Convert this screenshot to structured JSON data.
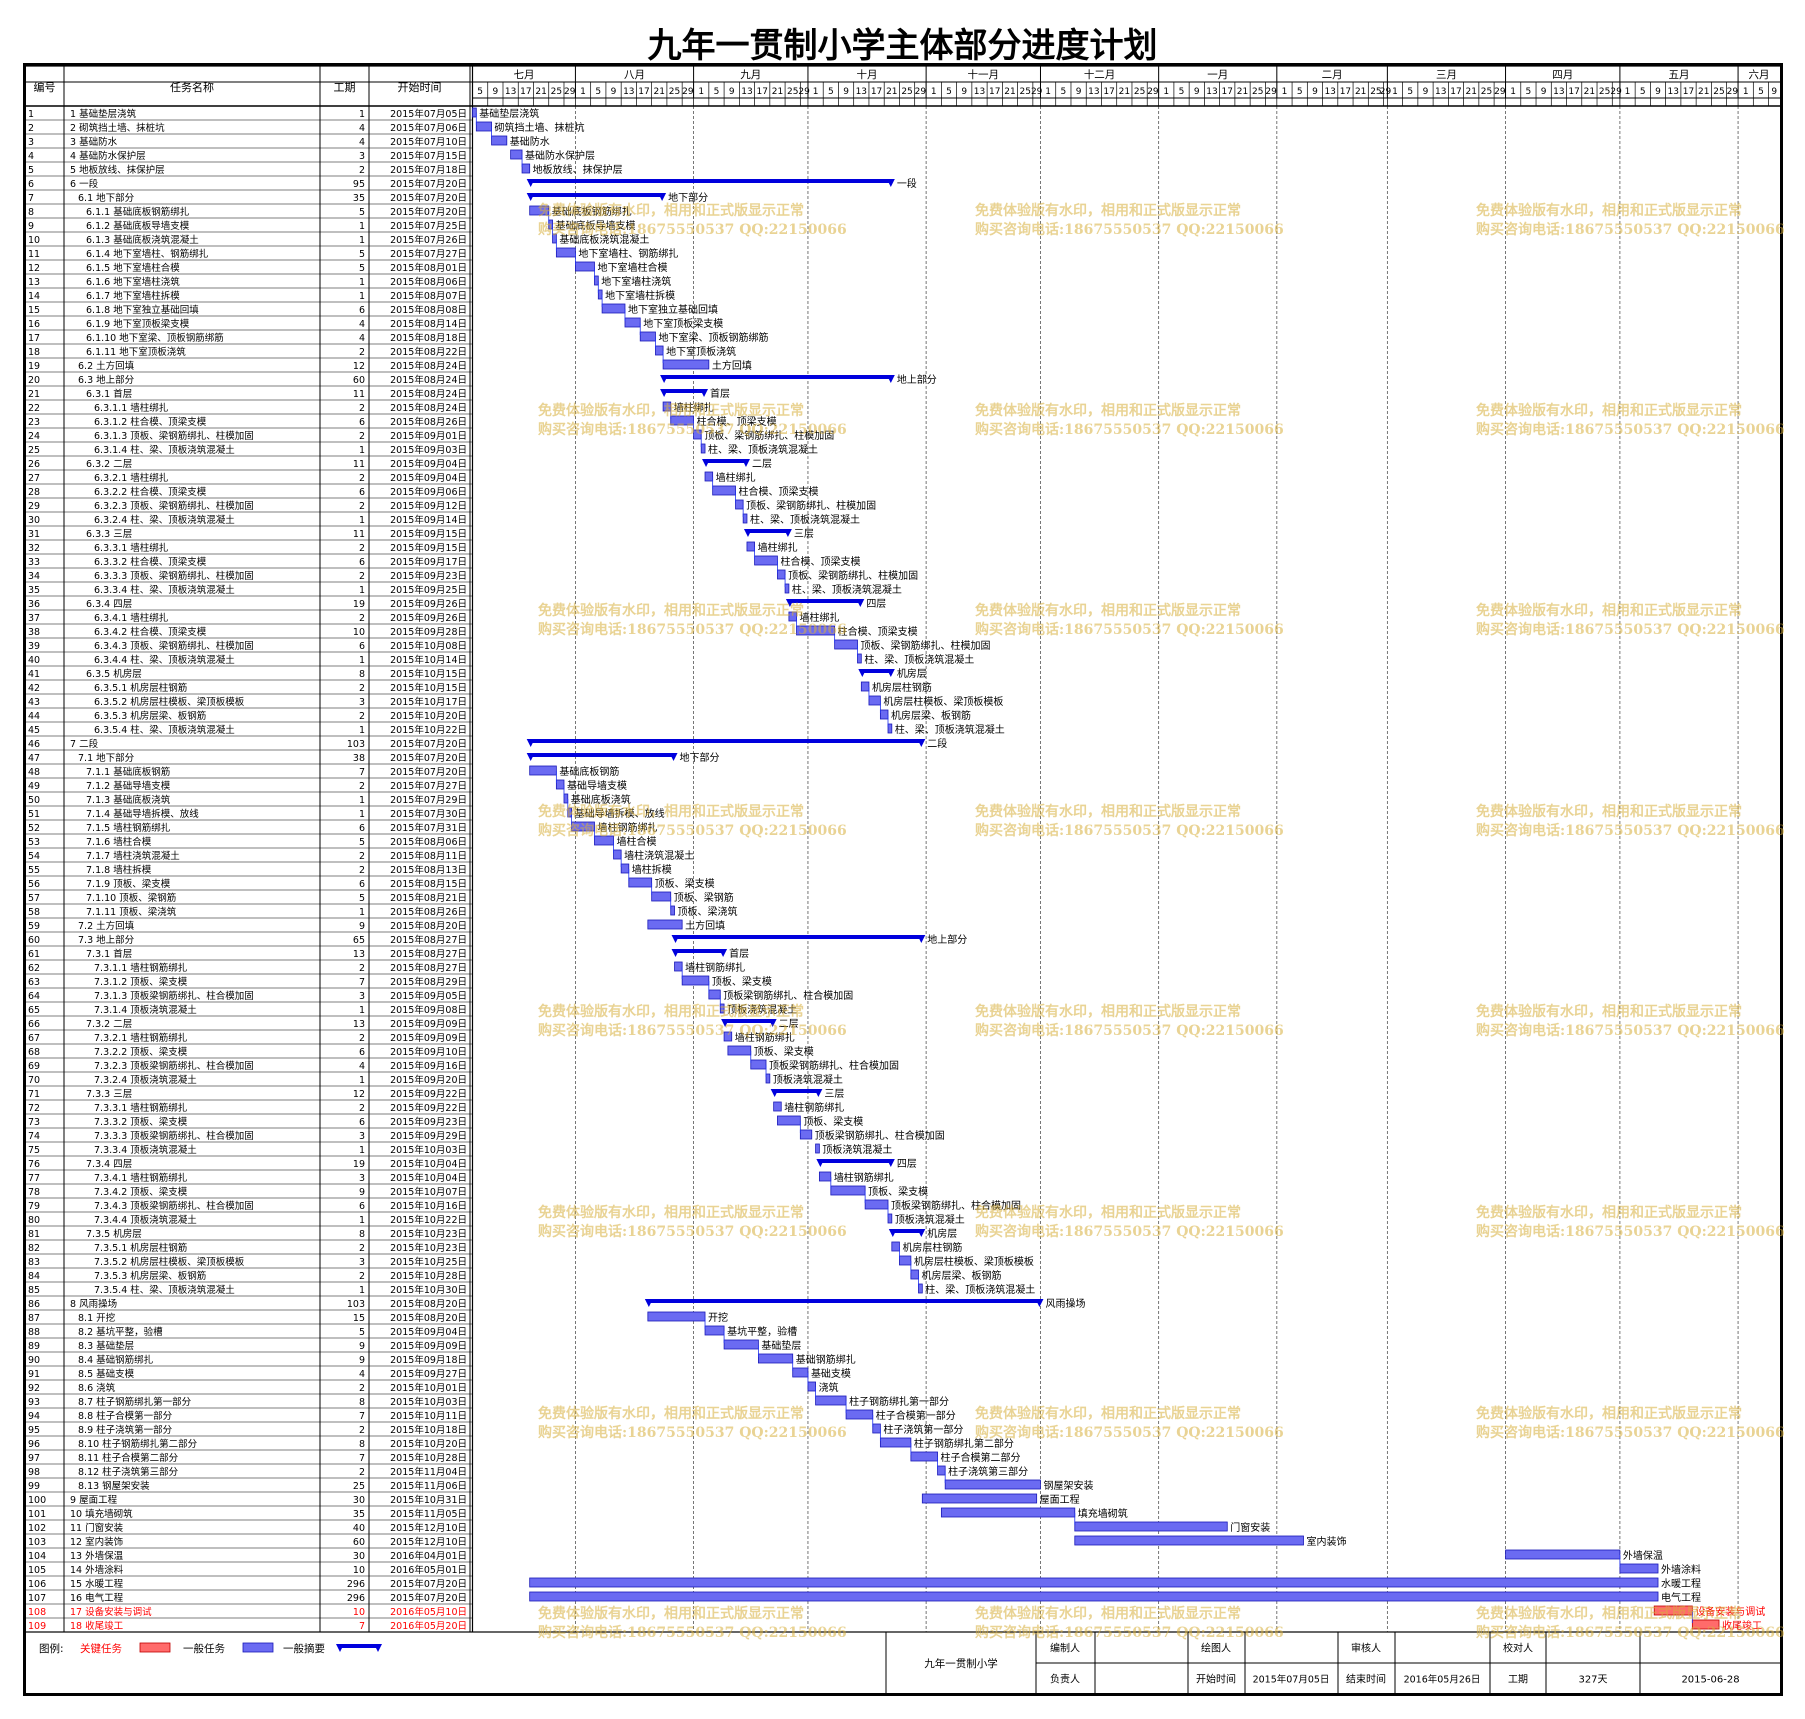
{
  "title": "九年一贯制小学主体部分进度计划",
  "table_headers": [
    "编号",
    "任务名称",
    "工期",
    "开始时间"
  ],
  "months": [
    "七月",
    "八月",
    "九月",
    "十月",
    "十一月",
    "十二月",
    "一月",
    "二月",
    "三月",
    "四月",
    "五月",
    "六月"
  ],
  "watermark": {
    "line1": "免费体验版有水印，相用和正式版显示正常",
    "line2": "购买咨询电话:18675550537 QQ:22150066"
  },
  "legend": {
    "label": "图例:",
    "critical": "关键任务",
    "normal": "一般任务",
    "summary": "一般摘要"
  },
  "footer": {
    "project": "九年一贯制小学",
    "compiler_label": "编制人",
    "drawer_label": "绘图人",
    "reviewer_label": "审核人",
    "checker_label": "校对人",
    "owner_label": "负责人",
    "start_label": "开始时间",
    "start_value": "2015年07月05日",
    "end_label": "结束时间",
    "end_value": "2016年05月26日",
    "duration_label": "工期",
    "duration_value": "327天",
    "date": "2015-06-28"
  },
  "colors": {
    "bar": "#6b6bf2",
    "bar_border": "#1a1ab8",
    "summary": "#0000dd",
    "critical": "#ff6b6b",
    "critical_text": "#ff0000",
    "link": "#2233ee"
  },
  "chart_data": {
    "type": "gantt",
    "timeline_start": "2015-07-05",
    "timeline_end": "2016-06-12",
    "tasks": [
      {
        "id": "1",
        "name": "1 基础垫层浇筑",
        "dur": 1,
        "start": "2015年07月05日",
        "kind": "task",
        "indent": 1
      },
      {
        "id": "2",
        "name": "2 砌筑挡土墙、抹桩坑",
        "dur": 4,
        "start": "2015年07月06日",
        "kind": "task",
        "indent": 1
      },
      {
        "id": "3",
        "name": "3 基础防水",
        "dur": 4,
        "start": "2015年07月10日",
        "kind": "task",
        "indent": 1
      },
      {
        "id": "4",
        "name": "4 基础防水保护层",
        "dur": 3,
        "start": "2015年07月15日",
        "kind": "task",
        "indent": 1
      },
      {
        "id": "5",
        "name": "5 地板放线、抹保护层",
        "dur": 2,
        "start": "2015年07月18日",
        "kind": "task",
        "indent": 1
      },
      {
        "id": "6",
        "name": "6 一段",
        "dur": 95,
        "start": "2015年07月20日",
        "kind": "summary",
        "indent": 1
      },
      {
        "id": "7",
        "name": "6.1 地下部分",
        "dur": 35,
        "start": "2015年07月20日",
        "kind": "summary",
        "indent": 2
      },
      {
        "id": "8",
        "name": "6.1.1 基础底板钢筋绑扎",
        "dur": 5,
        "start": "2015年07月20日",
        "kind": "task",
        "indent": 3
      },
      {
        "id": "9",
        "name": "6.1.2 基础底板导墙支模",
        "dur": 1,
        "start": "2015年07月25日",
        "kind": "task",
        "indent": 3
      },
      {
        "id": "10",
        "name": "6.1.3 基础底板浇筑混凝土",
        "dur": 1,
        "start": "2015年07月26日",
        "kind": "task",
        "indent": 3
      },
      {
        "id": "11",
        "name": "6.1.4 地下室墙柱、钢筋绑扎",
        "dur": 5,
        "start": "2015年07月27日",
        "kind": "task",
        "indent": 3
      },
      {
        "id": "12",
        "name": "6.1.5 地下室墙柱合模",
        "dur": 5,
        "start": "2015年08月01日",
        "kind": "task",
        "indent": 3
      },
      {
        "id": "13",
        "name": "6.1.6 地下室墙柱浇筑",
        "dur": 1,
        "start": "2015年08月06日",
        "kind": "task",
        "indent": 3
      },
      {
        "id": "14",
        "name": "6.1.7 地下室墙柱拆模",
        "dur": 1,
        "start": "2015年08月07日",
        "kind": "task",
        "indent": 3
      },
      {
        "id": "15",
        "name": "6.1.8 地下室独立基础回填",
        "dur": 6,
        "start": "2015年08月08日",
        "kind": "task",
        "indent": 3
      },
      {
        "id": "16",
        "name": "6.1.9 地下室顶板梁支模",
        "dur": 4,
        "start": "2015年08月14日",
        "kind": "task",
        "indent": 3
      },
      {
        "id": "17",
        "name": "6.1.10 地下室梁、顶板钢筋绑筋",
        "dur": 4,
        "start": "2015年08月18日",
        "kind": "task",
        "indent": 3
      },
      {
        "id": "18",
        "name": "6.1.11 地下室顶板浇筑",
        "dur": 2,
        "start": "2015年08月22日",
        "kind": "task",
        "indent": 3
      },
      {
        "id": "19",
        "name": "6.2 土方回填",
        "dur": 12,
        "start": "2015年08月24日",
        "kind": "task",
        "indent": 2
      },
      {
        "id": "20",
        "name": "6.3 地上部分",
        "dur": 60,
        "start": "2015年08月24日",
        "kind": "summary",
        "indent": 2
      },
      {
        "id": "21",
        "name": "6.3.1 首层",
        "dur": 11,
        "start": "2015年08月24日",
        "kind": "summary",
        "indent": 3
      },
      {
        "id": "22",
        "name": "6.3.1.1 墙柱绑扎",
        "dur": 2,
        "start": "2015年08月24日",
        "kind": "task",
        "indent": 4
      },
      {
        "id": "23",
        "name": "6.3.1.2 柱合模、顶梁支模",
        "dur": 6,
        "start": "2015年08月26日",
        "kind": "task",
        "indent": 4
      },
      {
        "id": "24",
        "name": "6.3.1.3 顶板、梁钢筋绑扎、柱模加固",
        "dur": 2,
        "start": "2015年09月01日",
        "kind": "task",
        "indent": 4
      },
      {
        "id": "25",
        "name": "6.3.1.4 柱、梁、顶板浇筑混凝土",
        "dur": 1,
        "start": "2015年09月03日",
        "kind": "task",
        "indent": 4
      },
      {
        "id": "26",
        "name": "6.3.2 二层",
        "dur": 11,
        "start": "2015年09月04日",
        "kind": "summary",
        "indent": 3
      },
      {
        "id": "27",
        "name": "6.3.2.1 墙柱绑扎",
        "dur": 2,
        "start": "2015年09月04日",
        "kind": "task",
        "indent": 4
      },
      {
        "id": "28",
        "name": "6.3.2.2 柱合模、顶梁支模",
        "dur": 6,
        "start": "2015年09月06日",
        "kind": "task",
        "indent": 4
      },
      {
        "id": "29",
        "name": "6.3.2.3 顶板、梁钢筋绑扎、柱模加固",
        "dur": 2,
        "start": "2015年09月12日",
        "kind": "task",
        "indent": 4
      },
      {
        "id": "30",
        "name": "6.3.2.4 柱、梁、顶板浇筑混凝土",
        "dur": 1,
        "start": "2015年09月14日",
        "kind": "task",
        "indent": 4
      },
      {
        "id": "31",
        "name": "6.3.3 三层",
        "dur": 11,
        "start": "2015年09月15日",
        "kind": "summary",
        "indent": 3
      },
      {
        "id": "32",
        "name": "6.3.3.1 墙柱绑扎",
        "dur": 2,
        "start": "2015年09月15日",
        "kind": "task",
        "indent": 4
      },
      {
        "id": "33",
        "name": "6.3.3.2 柱合模、顶梁支模",
        "dur": 6,
        "start": "2015年09月17日",
        "kind": "task",
        "indent": 4
      },
      {
        "id": "34",
        "name": "6.3.3.3 顶板、梁钢筋绑扎、柱模加固",
        "dur": 2,
        "start": "2015年09月23日",
        "kind": "task",
        "indent": 4
      },
      {
        "id": "35",
        "name": "6.3.3.4 柱、梁、顶板浇筑混凝土",
        "dur": 1,
        "start": "2015年09月25日",
        "kind": "task",
        "indent": 4
      },
      {
        "id": "36",
        "name": "6.3.4 四层",
        "dur": 19,
        "start": "2015年09月26日",
        "kind": "summary",
        "indent": 3
      },
      {
        "id": "37",
        "name": "6.3.4.1 墙柱绑扎",
        "dur": 2,
        "start": "2015年09月26日",
        "kind": "task",
        "indent": 4
      },
      {
        "id": "38",
        "name": "6.3.4.2 柱合模、顶梁支模",
        "dur": 10,
        "start": "2015年09月28日",
        "kind": "task",
        "indent": 4
      },
      {
        "id": "39",
        "name": "6.3.4.3 顶板、梁钢筋绑扎、柱模加固",
        "dur": 6,
        "start": "2015年10月08日",
        "kind": "task",
        "indent": 4
      },
      {
        "id": "40",
        "name": "6.3.4.4 柱、梁、顶板浇筑混凝土",
        "dur": 1,
        "start": "2015年10月14日",
        "kind": "task",
        "indent": 4
      },
      {
        "id": "41",
        "name": "6.3.5 机房层",
        "dur": 8,
        "start": "2015年10月15日",
        "kind": "summary",
        "indent": 3
      },
      {
        "id": "42",
        "name": "6.3.5.1 机房层柱钢筋",
        "dur": 2,
        "start": "2015年10月15日",
        "kind": "task",
        "indent": 4
      },
      {
        "id": "43",
        "name": "6.3.5.2 机房层柱模板、梁顶板模板",
        "dur": 3,
        "start": "2015年10月17日",
        "kind": "task",
        "indent": 4
      },
      {
        "id": "44",
        "name": "6.3.5.3 机房层梁、板钢筋",
        "dur": 2,
        "start": "2015年10月20日",
        "kind": "task",
        "indent": 4
      },
      {
        "id": "45",
        "name": "6.3.5.4 柱、梁、顶板浇筑混凝土",
        "dur": 1,
        "start": "2015年10月22日",
        "kind": "task",
        "indent": 4
      },
      {
        "id": "46",
        "name": "7 二段",
        "dur": 103,
        "start": "2015年07月20日",
        "kind": "summary",
        "indent": 1
      },
      {
        "id": "47",
        "name": "7.1 地下部分",
        "dur": 38,
        "start": "2015年07月20日",
        "kind": "summary",
        "indent": 2
      },
      {
        "id": "48",
        "name": "7.1.1 基础底板钢筋",
        "dur": 7,
        "start": "2015年07月20日",
        "kind": "task",
        "indent": 3
      },
      {
        "id": "49",
        "name": "7.1.2 基础导墙支模",
        "dur": 2,
        "start": "2015年07月27日",
        "kind": "task",
        "indent": 3
      },
      {
        "id": "50",
        "name": "7.1.3 基础底板浇筑",
        "dur": 1,
        "start": "2015年07月29日",
        "kind": "task",
        "indent": 3
      },
      {
        "id": "51",
        "name": "7.1.4 基础导墙拆模、放线",
        "dur": 1,
        "start": "2015年07月30日",
        "kind": "task",
        "indent": 3
      },
      {
        "id": "52",
        "name": "7.1.5 墙柱钢筋绑扎",
        "dur": 6,
        "start": "2015年07月31日",
        "kind": "task",
        "indent": 3
      },
      {
        "id": "53",
        "name": "7.1.6 墙柱合模",
        "dur": 5,
        "start": "2015年08月06日",
        "kind": "task",
        "indent": 3
      },
      {
        "id": "54",
        "name": "7.1.7 墙柱浇筑混凝土",
        "dur": 2,
        "start": "2015年08月11日",
        "kind": "task",
        "indent": 3
      },
      {
        "id": "55",
        "name": "7.1.8 墙柱拆模",
        "dur": 2,
        "start": "2015年08月13日",
        "kind": "task",
        "indent": 3
      },
      {
        "id": "56",
        "name": "7.1.9 顶板、梁支模",
        "dur": 6,
        "start": "2015年08月15日",
        "kind": "task",
        "indent": 3
      },
      {
        "id": "57",
        "name": "7.1.10 顶板、梁钢筋",
        "dur": 5,
        "start": "2015年08月21日",
        "kind": "task",
        "indent": 3
      },
      {
        "id": "58",
        "name": "7.1.11 顶板、梁浇筑",
        "dur": 1,
        "start": "2015年08月26日",
        "kind": "task",
        "indent": 3
      },
      {
        "id": "59",
        "name": "7.2 土方回填",
        "dur": 9,
        "start": "2015年08月20日",
        "kind": "task",
        "indent": 2
      },
      {
        "id": "60",
        "name": "7.3 地上部分",
        "dur": 65,
        "start": "2015年08月27日",
        "kind": "summary",
        "indent": 2
      },
      {
        "id": "61",
        "name": "7.3.1 首层",
        "dur": 13,
        "start": "2015年08月27日",
        "kind": "summary",
        "indent": 3
      },
      {
        "id": "62",
        "name": "7.3.1.1 墙柱钢筋绑扎",
        "dur": 2,
        "start": "2015年08月27日",
        "kind": "task",
        "indent": 4
      },
      {
        "id": "63",
        "name": "7.3.1.2 顶板、梁支模",
        "dur": 7,
        "start": "2015年08月29日",
        "kind": "task",
        "indent": 4
      },
      {
        "id": "64",
        "name": "7.3.1.3 顶板梁钢筋绑扎、柱合模加固",
        "dur": 3,
        "start": "2015年09月05日",
        "kind": "task",
        "indent": 4
      },
      {
        "id": "65",
        "name": "7.3.1.4 顶板浇筑混凝土",
        "dur": 1,
        "start": "2015年09月08日",
        "kind": "task",
        "indent": 4
      },
      {
        "id": "66",
        "name": "7.3.2 二层",
        "dur": 13,
        "start": "2015年09月09日",
        "kind": "summary",
        "indent": 3
      },
      {
        "id": "67",
        "name": "7.3.2.1 墙柱钢筋绑扎",
        "dur": 2,
        "start": "2015年09月09日",
        "kind": "task",
        "indent": 4
      },
      {
        "id": "68",
        "name": "7.3.2.2 顶板、梁支模",
        "dur": 6,
        "start": "2015年09月10日",
        "kind": "task",
        "indent": 4
      },
      {
        "id": "69",
        "name": "7.3.2.3 顶板梁钢筋绑扎、柱合模加固",
        "dur": 4,
        "start": "2015年09月16日",
        "kind": "task",
        "indent": 4
      },
      {
        "id": "70",
        "name": "7.3.2.4 顶板浇筑混凝土",
        "dur": 1,
        "start": "2015年09月20日",
        "kind": "task",
        "indent": 4
      },
      {
        "id": "71",
        "name": "7.3.3 三层",
        "dur": 12,
        "start": "2015年09月22日",
        "kind": "summary",
        "indent": 3
      },
      {
        "id": "72",
        "name": "7.3.3.1 墙柱钢筋绑扎",
        "dur": 2,
        "start": "2015年09月22日",
        "kind": "task",
        "indent": 4
      },
      {
        "id": "73",
        "name": "7.3.3.2 顶板、梁支模",
        "dur": 6,
        "start": "2015年09月23日",
        "kind": "task",
        "indent": 4
      },
      {
        "id": "74",
        "name": "7.3.3.3 顶板梁钢筋绑扎、柱合模加固",
        "dur": 3,
        "start": "2015年09月29日",
        "kind": "task",
        "indent": 4
      },
      {
        "id": "75",
        "name": "7.3.3.4 顶板浇筑混凝土",
        "dur": 1,
        "start": "2015年10月03日",
        "kind": "task",
        "indent": 4
      },
      {
        "id": "76",
        "name": "7.3.4 四层",
        "dur": 19,
        "start": "2015年10月04日",
        "kind": "summary",
        "indent": 3
      },
      {
        "id": "77",
        "name": "7.3.4.1 墙柱钢筋绑扎",
        "dur": 3,
        "start": "2015年10月04日",
        "kind": "task",
        "indent": 4
      },
      {
        "id": "78",
        "name": "7.3.4.2 顶板、梁支模",
        "dur": 9,
        "start": "2015年10月07日",
        "kind": "task",
        "indent": 4
      },
      {
        "id": "79",
        "name": "7.3.4.3 顶板梁钢筋绑扎、柱合模加固",
        "dur": 6,
        "start": "2015年10月16日",
        "kind": "task",
        "indent": 4
      },
      {
        "id": "80",
        "name": "7.3.4.4 顶板浇筑混凝土",
        "dur": 1,
        "start": "2015年10月22日",
        "kind": "task",
        "indent": 4
      },
      {
        "id": "81",
        "name": "7.3.5 机房层",
        "dur": 8,
        "start": "2015年10月23日",
        "kind": "summary",
        "indent": 3
      },
      {
        "id": "82",
        "name": "7.3.5.1 机房层柱钢筋",
        "dur": 2,
        "start": "2015年10月23日",
        "kind": "task",
        "indent": 4
      },
      {
        "id": "83",
        "name": "7.3.5.2 机房层柱模板、梁顶板模板",
        "dur": 3,
        "start": "2015年10月25日",
        "kind": "task",
        "indent": 4
      },
      {
        "id": "84",
        "name": "7.3.5.3 机房层梁、板钢筋",
        "dur": 2,
        "start": "2015年10月28日",
        "kind": "task",
        "indent": 4
      },
      {
        "id": "85",
        "name": "7.3.5.4 柱、梁、顶板浇筑混凝土",
        "dur": 1,
        "start": "2015年10月30日",
        "kind": "task",
        "indent": 4
      },
      {
        "id": "86",
        "name": "8 风雨操场",
        "dur": 103,
        "start": "2015年08月20日",
        "kind": "summary",
        "indent": 1
      },
      {
        "id": "87",
        "name": "8.1 开挖",
        "dur": 15,
        "start": "2015年08月20日",
        "kind": "task",
        "indent": 2
      },
      {
        "id": "88",
        "name": "8.2 基坑平整，验槽",
        "dur": 5,
        "start": "2015年09月04日",
        "kind": "task",
        "indent": 2
      },
      {
        "id": "89",
        "name": "8.3 基础垫层",
        "dur": 9,
        "start": "2015年09月09日",
        "kind": "task",
        "indent": 2
      },
      {
        "id": "90",
        "name": "8.4 基础钢筋绑扎",
        "dur": 9,
        "start": "2015年09月18日",
        "kind": "task",
        "indent": 2
      },
      {
        "id": "91",
        "name": "8.5 基础支模",
        "dur": 4,
        "start": "2015年09月27日",
        "kind": "task",
        "indent": 2
      },
      {
        "id": "92",
        "name": "8.6 浇筑",
        "dur": 2,
        "start": "2015年10月01日",
        "kind": "task",
        "indent": 2
      },
      {
        "id": "93",
        "name": "8.7 柱子钢筋绑扎第一部分",
        "dur": 8,
        "start": "2015年10月03日",
        "kind": "task",
        "indent": 2
      },
      {
        "id": "94",
        "name": "8.8 柱子合模第一部分",
        "dur": 7,
        "start": "2015年10月11日",
        "kind": "task",
        "indent": 2
      },
      {
        "id": "95",
        "name": "8.9 柱子浇筑第一部分",
        "dur": 2,
        "start": "2015年10月18日",
        "kind": "task",
        "indent": 2
      },
      {
        "id": "96",
        "name": "8.10 柱子钢筋绑扎第二部分",
        "dur": 8,
        "start": "2015年10月20日",
        "kind": "task",
        "indent": 2
      },
      {
        "id": "97",
        "name": "8.11 柱子合模第二部分",
        "dur": 7,
        "start": "2015年10月28日",
        "kind": "task",
        "indent": 2
      },
      {
        "id": "98",
        "name": "8.12 柱子浇筑第三部分",
        "dur": 2,
        "start": "2015年11月04日",
        "kind": "task",
        "indent": 2
      },
      {
        "id": "99",
        "name": "8.13 钢屋架安装",
        "dur": 25,
        "start": "2015年11月06日",
        "kind": "task",
        "indent": 2
      },
      {
        "id": "100",
        "name": "9 屋面工程",
        "dur": 30,
        "start": "2015年10月31日",
        "kind": "task",
        "indent": 1
      },
      {
        "id": "101",
        "name": "10 填充墙砌筑",
        "dur": 35,
        "start": "2015年11月05日",
        "kind": "task",
        "indent": 1
      },
      {
        "id": "102",
        "name": "11 门窗安装",
        "dur": 40,
        "start": "2015年12月10日",
        "kind": "task",
        "indent": 1
      },
      {
        "id": "103",
        "name": "12 室内装饰",
        "dur": 60,
        "start": "2015年12月10日",
        "kind": "task",
        "indent": 1
      },
      {
        "id": "104",
        "name": "13 外墙保温",
        "dur": 30,
        "start": "2016年04月01日",
        "kind": "task",
        "indent": 1
      },
      {
        "id": "105",
        "name": "14 外墙涂料",
        "dur": 10,
        "start": "2016年05月01日",
        "kind": "task",
        "indent": 1
      },
      {
        "id": "106",
        "name": "15 水暖工程",
        "dur": 296,
        "start": "2015年07月20日",
        "kind": "task",
        "indent": 1
      },
      {
        "id": "107",
        "name": "16 电气工程",
        "dur": 296,
        "start": "2015年07月20日",
        "kind": "task",
        "indent": 1
      },
      {
        "id": "108",
        "name": "17 设备安装与调试",
        "dur": 10,
        "start": "2016年05月10日",
        "kind": "critical",
        "indent": 1
      },
      {
        "id": "109",
        "name": "18 收尾竣工",
        "dur": 7,
        "start": "2016年05月20日",
        "kind": "critical",
        "indent": 1
      }
    ]
  }
}
